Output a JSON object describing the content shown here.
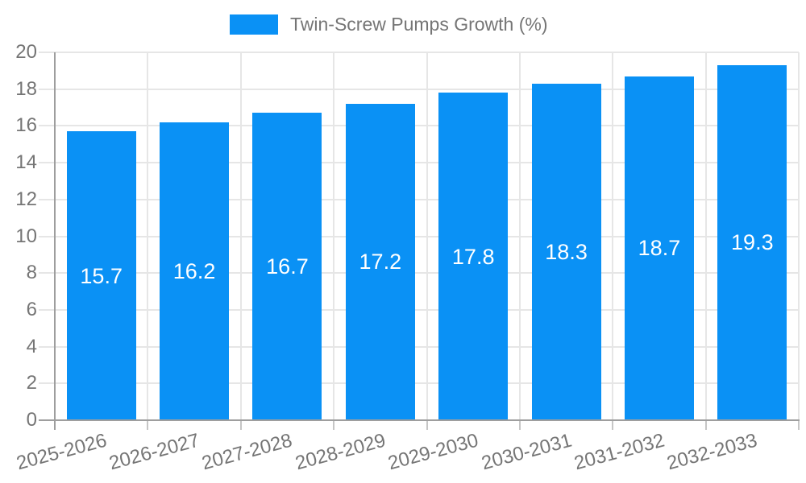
{
  "legend": {
    "label": "Twin-Screw Pumps Growth (%)"
  },
  "chart_data": {
    "type": "bar",
    "title": "",
    "legend": "Twin-Screw Pumps Growth (%)",
    "legend_position": "top-center",
    "categories": [
      "2025-2026",
      "2026-2027",
      "2027-2028",
      "2028-2029",
      "2029-2030",
      "2030-2031",
      "2031-2032",
      "2032-2033"
    ],
    "values": [
      15.7,
      16.2,
      16.7,
      17.2,
      17.8,
      18.3,
      18.7,
      19.3
    ],
    "value_labels": [
      "15.7",
      "16.2",
      "16.7",
      "17.2",
      "17.8",
      "18.3",
      "18.7",
      "19.3"
    ],
    "xlabel": "",
    "ylabel": "",
    "ylim": [
      0,
      20
    ],
    "ytick_step": 2,
    "yticks": [
      0,
      2,
      4,
      6,
      8,
      10,
      12,
      14,
      16,
      18,
      20
    ],
    "grid": true,
    "x_label_rotation_deg": -15,
    "colors": {
      "bar": "#0a91f5",
      "value_label": "#ffffff",
      "axis_text": "#757575",
      "grid_line": "#e6e6e6",
      "axis_line": "#9e9e9e",
      "tick": "#c6c6c6",
      "background": "#ffffff"
    }
  }
}
